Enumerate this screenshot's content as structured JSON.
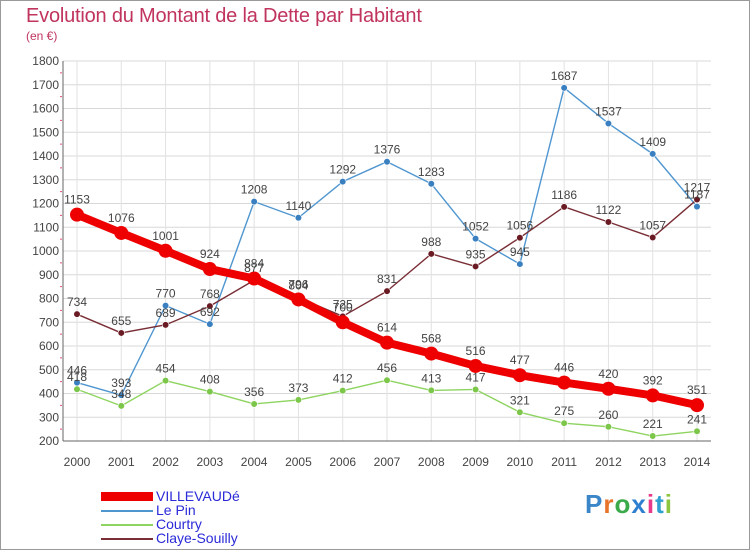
{
  "title": "Evolution du Montant de la Dette par Habitant",
  "unit": "(en €)",
  "logo": {
    "text": "Proxiti",
    "letter_colors": [
      "#3a86c8",
      "#e8732a",
      "#3aaa4a",
      "#2f7fd0",
      "#e83a8a",
      "#2fa0d0",
      "#8cc63f"
    ]
  },
  "chart_data": {
    "type": "line",
    "x": [
      "2000",
      "2001",
      "2002",
      "2003",
      "2004",
      "2005",
      "2006",
      "2007",
      "2008",
      "2009",
      "2010",
      "2011",
      "2012",
      "2013",
      "2014"
    ],
    "ylim": [
      200,
      1800
    ],
    "yticks": [
      200,
      300,
      400,
      500,
      600,
      700,
      800,
      900,
      1000,
      1100,
      1200,
      1300,
      1400,
      1500,
      1600,
      1700,
      1800
    ],
    "grid": true,
    "legend_position": "bottom-left",
    "series": [
      {
        "name": "Le Pin",
        "color": "#4f96d0",
        "marker": "#3a7fc0",
        "values": [
          446,
          393,
          770,
          692,
          1208,
          1140,
          1292,
          1376,
          1283,
          1052,
          945,
          1687,
          1537,
          1409,
          1187
        ]
      },
      {
        "name": "Courtry",
        "color": "#8ed460",
        "marker": "#7cc64a",
        "values": [
          418,
          348,
          454,
          408,
          356,
          373,
          412,
          456,
          413,
          417,
          321,
          275,
          260,
          221,
          241
        ]
      },
      {
        "name": "Claye-Souilly",
        "color": "#7a2e36",
        "marker": "#6a1a22",
        "values": [
          734,
          655,
          689,
          768,
          877,
          804,
          725,
          831,
          988,
          935,
          1056,
          1186,
          1122,
          1057,
          1217
        ]
      },
      {
        "name": "VILLEVAUDé",
        "color": "#ee0000",
        "marker": "#ee0000",
        "values": [
          1153,
          1076,
          1001,
          924,
          884,
          796,
          700,
          614,
          568,
          516,
          477,
          446,
          420,
          392,
          351
        ]
      }
    ]
  }
}
